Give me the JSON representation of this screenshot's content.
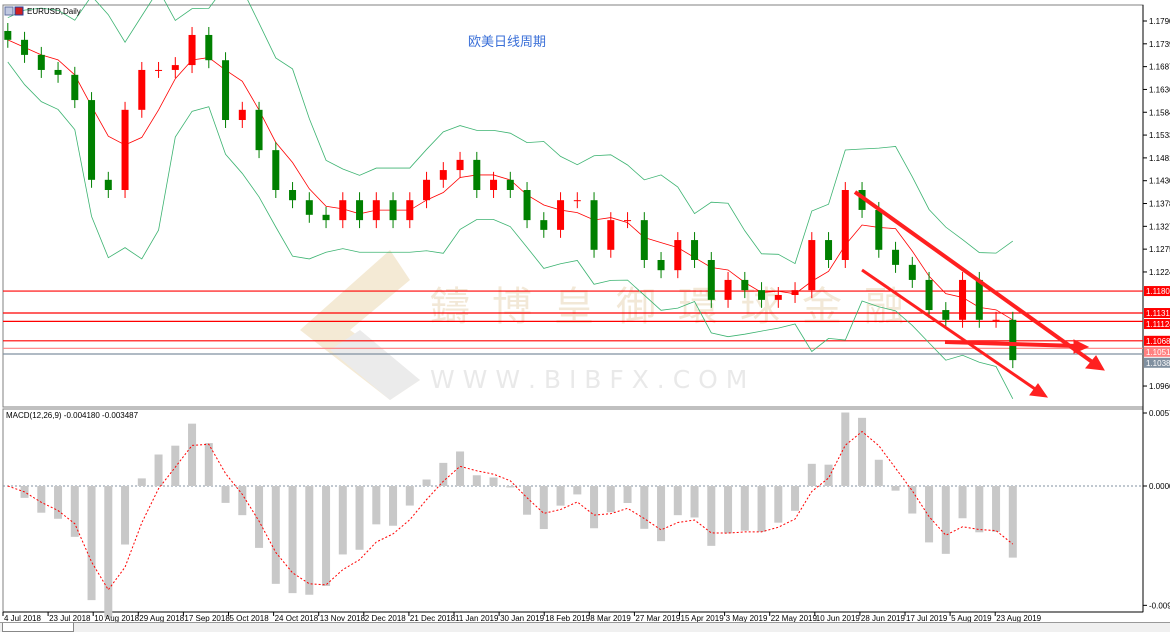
{
  "window": {
    "symbol_title": "EURUSD,Daily"
  },
  "annotation_title": "欧美日线周期",
  "watermark": {
    "company": "鑄博皇御環球金融",
    "url": "W W W . B I B F X . C O M"
  },
  "macd_label": "MACD(12,26,9) -0.004180 -0.003487",
  "colors": {
    "bull": "#ff0000",
    "bear": "#008000",
    "bands": "#3cb371",
    "middle": "#ff0000",
    "level_line": "#ff0000",
    "current_price": "#8090a0",
    "title": "#3a6fd8"
  },
  "chart_data": [
    {
      "type": "candlestick",
      "title": "EURUSD,Daily",
      "ylim": [
        1.093,
        1.181
      ],
      "y_ticks": [
        "1.17905",
        "1.17390",
        "1.16875",
        "1.16360",
        "1.15845",
        "1.15330",
        "1.14815",
        "1.14300",
        "1.13785",
        "1.13270",
        "1.12755",
        "1.12240",
        "1.09665"
      ],
      "x_ticks": [
        "4 Jul 2018",
        "23 Jul 2018",
        "10 Aug 2018",
        "29 Aug 2018",
        "17 Sep 2018",
        "5 Oct 2018",
        "24 Oct 2018",
        "13 Nov 2018",
        "2 Dec 2018",
        "21 Dec 2018",
        "11 Jan 2019",
        "30 Jan 2019",
        "18 Feb 2019",
        "8 Mar 2019",
        "27 Mar 2019",
        "15 Apr 2019",
        "3 May 2019",
        "22 May 2019",
        "10 Jun 2019",
        "28 Jun 2019",
        "17 Jul 2019",
        "5 Aug 2019",
        "23 Aug 2019"
      ],
      "indicators": [
        "Bollinger Bands",
        "Moving Average"
      ],
      "closes": [
        1.1748,
        1.1714,
        1.168,
        1.1669,
        1.1612,
        1.1432,
        1.1409,
        1.159,
        1.168,
        1.168,
        1.1691,
        1.1759,
        1.1702,
        1.1567,
        1.159,
        1.1499,
        1.1409,
        1.1386,
        1.1353,
        1.1341,
        1.1386,
        1.1341,
        1.1386,
        1.1341,
        1.1386,
        1.1432,
        1.1454,
        1.1477,
        1.1409,
        1.1432,
        1.1409,
        1.1341,
        1.1319,
        1.1386,
        1.1386,
        1.1274,
        1.1341,
        1.1341,
        1.1251,
        1.1228,
        1.1296,
        1.1251,
        1.1161,
        1.1206,
        1.1183,
        1.1161,
        1.1172,
        1.1183,
        1.1296,
        1.1251,
        1.1409,
        1.1364,
        1.1274,
        1.124,
        1.1206,
        1.1138,
        1.1116,
        1.1206,
        1.1116,
        1.1116,
        1.1025
      ],
      "horizontal_levels": [
        {
          "price": "1.11809",
          "color": "#ff0000"
        },
        {
          "price": "1.11313",
          "color": "#ff0000"
        },
        {
          "price": "1.11124",
          "color": "#ff0000"
        },
        {
          "price": "1.10686",
          "color": "#ff0000"
        },
        {
          "price": "1.10517",
          "color": "#ff8080"
        },
        {
          "price": "1.10388",
          "color": "#8090a0"
        }
      ]
    },
    {
      "type": "bar",
      "title": "MACD(12,26,9) -0.004180 -0.003487",
      "ylim": [
        -0.0094,
        0.00575
      ],
      "y_ticks": [
        "0.00575",
        "0.000000",
        "-0.0094"
      ]
    }
  ]
}
